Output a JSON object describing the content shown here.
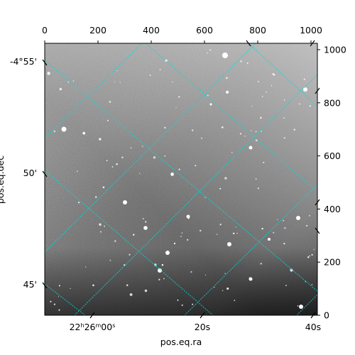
{
  "chart_data": {
    "type": "image",
    "xlabel": "pos.eq.ra",
    "ylabel": "pos.eq.dec",
    "pixel_x_axis": {
      "range": [
        0,
        1024
      ],
      "ticks": [
        0,
        200,
        400,
        600,
        800,
        1000
      ]
    },
    "pixel_y_axis": {
      "range": [
        0,
        1024
      ],
      "ticks": [
        0,
        200,
        400,
        600,
        800,
        1000
      ]
    },
    "ra_ticks": [
      {
        "label": "22h26m00s",
        "hours": "22",
        "minutes": "26",
        "seconds": "00"
      },
      {
        "label": "20s"
      },
      {
        "label": "40s"
      }
    ],
    "dec_ticks": [
      {
        "label": "-4°55'"
      },
      {
        "label": "50'"
      },
      {
        "label": "45'"
      }
    ],
    "grid": true,
    "grid_color": "#00dddd",
    "image_colormap": "grayscale",
    "background_color": "#ffffff"
  }
}
